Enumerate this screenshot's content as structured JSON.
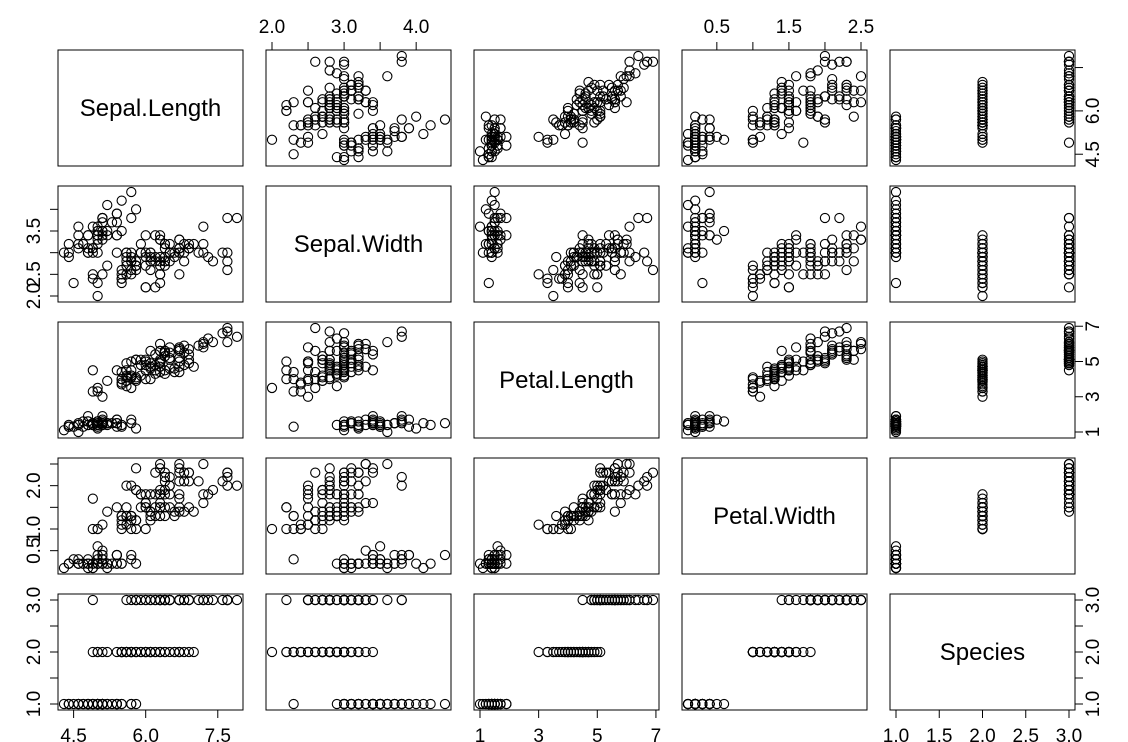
{
  "chart_data": {
    "type": "scatter-matrix",
    "variables": [
      "Sepal.Length",
      "Sepal.Width",
      "Petal.Length",
      "Petal.Width",
      "Species"
    ],
    "ranges": [
      [
        4.3,
        7.9
      ],
      [
        2.0,
        4.4
      ],
      [
        1.0,
        6.9
      ],
      [
        0.1,
        2.5
      ],
      [
        1,
        3
      ]
    ],
    "ticks": [
      [
        4.5,
        6.0,
        7.5
      ],
      [
        2.0,
        3.0,
        4.0,
        2.5,
        3.5
      ],
      [
        1,
        3,
        5,
        7
      ],
      [
        0.5,
        1.5,
        2.5,
        1.0,
        2.0
      ],
      [
        1.0,
        2.0,
        3.0,
        1.5,
        2.5
      ]
    ],
    "tick_labels": [
      [
        "4.5",
        "6.0",
        "7.5"
      ],
      [
        "2.0",
        "3.0",
        "4.0",
        "2.5",
        "3.5"
      ],
      [
        "1",
        "3",
        "5",
        "7"
      ],
      [
        "0.5",
        "1.5",
        "2.5",
        "1.0",
        "2.0"
      ],
      [
        "1.0",
        "2.0",
        "3.0",
        "1.5",
        "2.5"
      ]
    ],
    "axes_layout": {
      "top": [
        null,
        [
          0,
          1,
          2
        ],
        null,
        [
          0,
          1,
          2
        ],
        null
      ],
      "bottom": [
        [
          0,
          1,
          2
        ],
        null,
        [
          0,
          1,
          2,
          3
        ],
        null,
        [
          0,
          3,
          1,
          4,
          2
        ]
      ],
      "left": [
        null,
        [
          3,
          4,
          0
        ],
        null,
        [
          0,
          3,
          4
        ],
        [
          0,
          1,
          2
        ]
      ],
      "right": [
        [
          0,
          1
        ],
        null,
        [
          0,
          1,
          2,
          3
        ],
        null,
        [
          0,
          1,
          2
        ]
      ]
    },
    "columns": [
      "Sepal.Length",
      "Sepal.Width",
      "Petal.Length",
      "Petal.Width",
      "Species"
    ],
    "rows": [
      [
        5.1,
        3.5,
        1.4,
        0.2,
        1
      ],
      [
        4.9,
        3.0,
        1.4,
        0.2,
        1
      ],
      [
        4.7,
        3.2,
        1.3,
        0.2,
        1
      ],
      [
        4.6,
        3.1,
        1.5,
        0.2,
        1
      ],
      [
        5.0,
        3.6,
        1.4,
        0.2,
        1
      ],
      [
        5.4,
        3.9,
        1.7,
        0.4,
        1
      ],
      [
        4.6,
        3.4,
        1.4,
        0.3,
        1
      ],
      [
        5.0,
        3.4,
        1.5,
        0.2,
        1
      ],
      [
        4.4,
        2.9,
        1.4,
        0.2,
        1
      ],
      [
        4.9,
        3.1,
        1.5,
        0.1,
        1
      ],
      [
        5.4,
        3.7,
        1.5,
        0.2,
        1
      ],
      [
        4.8,
        3.4,
        1.6,
        0.2,
        1
      ],
      [
        4.8,
        3.0,
        1.4,
        0.1,
        1
      ],
      [
        4.3,
        3.0,
        1.1,
        0.1,
        1
      ],
      [
        5.8,
        4.0,
        1.2,
        0.2,
        1
      ],
      [
        5.7,
        4.4,
        1.5,
        0.4,
        1
      ],
      [
        5.4,
        3.9,
        1.3,
        0.4,
        1
      ],
      [
        5.1,
        3.5,
        1.4,
        0.3,
        1
      ],
      [
        5.7,
        3.8,
        1.7,
        0.3,
        1
      ],
      [
        5.1,
        3.8,
        1.5,
        0.3,
        1
      ],
      [
        5.4,
        3.4,
        1.7,
        0.2,
        1
      ],
      [
        5.1,
        3.7,
        1.5,
        0.4,
        1
      ],
      [
        4.6,
        3.6,
        1.0,
        0.2,
        1
      ],
      [
        5.1,
        3.3,
        1.7,
        0.5,
        1
      ],
      [
        4.8,
        3.4,
        1.9,
        0.2,
        1
      ],
      [
        5.0,
        3.0,
        1.6,
        0.2,
        1
      ],
      [
        5.0,
        3.4,
        1.6,
        0.4,
        1
      ],
      [
        5.2,
        3.5,
        1.5,
        0.2,
        1
      ],
      [
        5.2,
        3.4,
        1.4,
        0.2,
        1
      ],
      [
        4.7,
        3.2,
        1.6,
        0.2,
        1
      ],
      [
        4.8,
        3.1,
        1.6,
        0.2,
        1
      ],
      [
        5.4,
        3.4,
        1.5,
        0.4,
        1
      ],
      [
        5.2,
        4.1,
        1.5,
        0.1,
        1
      ],
      [
        5.5,
        4.2,
        1.4,
        0.2,
        1
      ],
      [
        4.9,
        3.1,
        1.5,
        0.2,
        1
      ],
      [
        5.0,
        3.2,
        1.2,
        0.2,
        1
      ],
      [
        5.5,
        3.5,
        1.3,
        0.2,
        1
      ],
      [
        4.9,
        3.6,
        1.4,
        0.1,
        1
      ],
      [
        4.4,
        3.0,
        1.3,
        0.2,
        1
      ],
      [
        5.1,
        3.4,
        1.5,
        0.2,
        1
      ],
      [
        5.0,
        3.5,
        1.3,
        0.3,
        1
      ],
      [
        4.5,
        2.3,
        1.3,
        0.3,
        1
      ],
      [
        4.4,
        3.2,
        1.3,
        0.2,
        1
      ],
      [
        5.0,
        3.5,
        1.6,
        0.6,
        1
      ],
      [
        5.1,
        3.8,
        1.9,
        0.4,
        1
      ],
      [
        4.8,
        3.0,
        1.4,
        0.3,
        1
      ],
      [
        5.1,
        3.8,
        1.6,
        0.2,
        1
      ],
      [
        4.6,
        3.2,
        1.4,
        0.2,
        1
      ],
      [
        5.3,
        3.7,
        1.5,
        0.2,
        1
      ],
      [
        5.0,
        3.3,
        1.4,
        0.2,
        1
      ],
      [
        7.0,
        3.2,
        4.7,
        1.4,
        2
      ],
      [
        6.4,
        3.2,
        4.5,
        1.5,
        2
      ],
      [
        6.9,
        3.1,
        4.9,
        1.5,
        2
      ],
      [
        5.5,
        2.3,
        4.0,
        1.3,
        2
      ],
      [
        6.5,
        2.8,
        4.6,
        1.5,
        2
      ],
      [
        5.7,
        2.8,
        4.5,
        1.3,
        2
      ],
      [
        6.3,
        3.3,
        4.7,
        1.6,
        2
      ],
      [
        4.9,
        2.4,
        3.3,
        1.0,
        2
      ],
      [
        6.6,
        2.9,
        4.6,
        1.3,
        2
      ],
      [
        5.2,
        2.7,
        3.9,
        1.4,
        2
      ],
      [
        5.0,
        2.0,
        3.5,
        1.0,
        2
      ],
      [
        5.9,
        3.0,
        4.2,
        1.5,
        2
      ],
      [
        6.0,
        2.2,
        4.0,
        1.0,
        2
      ],
      [
        6.1,
        2.9,
        4.7,
        1.4,
        2
      ],
      [
        5.6,
        2.9,
        3.6,
        1.3,
        2
      ],
      [
        6.7,
        3.1,
        4.4,
        1.4,
        2
      ],
      [
        5.6,
        3.0,
        4.5,
        1.5,
        2
      ],
      [
        5.8,
        2.7,
        4.1,
        1.0,
        2
      ],
      [
        6.2,
        2.2,
        4.5,
        1.5,
        2
      ],
      [
        5.6,
        2.5,
        3.9,
        1.1,
        2
      ],
      [
        5.9,
        3.2,
        4.8,
        1.8,
        2
      ],
      [
        6.1,
        2.8,
        4.0,
        1.3,
        2
      ],
      [
        6.3,
        2.5,
        4.9,
        1.5,
        2
      ],
      [
        6.1,
        2.8,
        4.7,
        1.2,
        2
      ],
      [
        6.4,
        2.9,
        4.3,
        1.3,
        2
      ],
      [
        6.6,
        3.0,
        4.4,
        1.4,
        2
      ],
      [
        6.8,
        2.8,
        4.8,
        1.4,
        2
      ],
      [
        6.7,
        3.0,
        5.0,
        1.7,
        2
      ],
      [
        6.0,
        2.9,
        4.5,
        1.5,
        2
      ],
      [
        5.7,
        2.6,
        3.5,
        1.0,
        2
      ],
      [
        5.5,
        2.4,
        3.8,
        1.1,
        2
      ],
      [
        5.5,
        2.4,
        3.7,
        1.0,
        2
      ],
      [
        5.8,
        2.7,
        3.9,
        1.2,
        2
      ],
      [
        6.0,
        2.7,
        5.1,
        1.6,
        2
      ],
      [
        5.4,
        3.0,
        4.5,
        1.5,
        2
      ],
      [
        6.0,
        3.4,
        4.5,
        1.6,
        2
      ],
      [
        6.7,
        3.1,
        4.7,
        1.5,
        2
      ],
      [
        6.3,
        2.3,
        4.4,
        1.3,
        2
      ],
      [
        5.6,
        3.0,
        4.1,
        1.3,
        2
      ],
      [
        5.5,
        2.5,
        4.0,
        1.3,
        2
      ],
      [
        5.5,
        2.6,
        4.4,
        1.2,
        2
      ],
      [
        6.1,
        3.0,
        4.6,
        1.4,
        2
      ],
      [
        5.8,
        2.6,
        4.0,
        1.2,
        2
      ],
      [
        5.0,
        2.3,
        3.3,
        1.0,
        2
      ],
      [
        5.6,
        2.7,
        4.2,
        1.3,
        2
      ],
      [
        5.7,
        3.0,
        4.2,
        1.2,
        2
      ],
      [
        5.7,
        2.9,
        4.2,
        1.3,
        2
      ],
      [
        6.2,
        2.9,
        4.3,
        1.3,
        2
      ],
      [
        5.1,
        2.5,
        3.0,
        1.1,
        2
      ],
      [
        5.7,
        2.8,
        4.1,
        1.3,
        2
      ],
      [
        6.3,
        3.3,
        6.0,
        2.5,
        3
      ],
      [
        5.8,
        2.7,
        5.1,
        1.9,
        3
      ],
      [
        7.1,
        3.0,
        5.9,
        2.1,
        3
      ],
      [
        6.3,
        2.9,
        5.6,
        1.8,
        3
      ],
      [
        6.5,
        3.0,
        5.8,
        2.2,
        3
      ],
      [
        7.6,
        3.0,
        6.6,
        2.1,
        3
      ],
      [
        4.9,
        2.5,
        4.5,
        1.7,
        3
      ],
      [
        7.3,
        2.9,
        6.3,
        1.8,
        3
      ],
      [
        6.7,
        2.5,
        5.8,
        1.8,
        3
      ],
      [
        7.2,
        3.6,
        6.1,
        2.5,
        3
      ],
      [
        6.5,
        3.2,
        5.1,
        2.0,
        3
      ],
      [
        6.4,
        2.7,
        5.3,
        1.9,
        3
      ],
      [
        6.8,
        3.0,
        5.5,
        2.1,
        3
      ],
      [
        5.7,
        2.5,
        5.0,
        2.0,
        3
      ],
      [
        5.8,
        2.8,
        5.1,
        2.4,
        3
      ],
      [
        6.4,
        3.2,
        5.3,
        2.3,
        3
      ],
      [
        6.5,
        3.0,
        5.5,
        1.8,
        3
      ],
      [
        7.7,
        3.8,
        6.7,
        2.2,
        3
      ],
      [
        7.7,
        2.6,
        6.9,
        2.3,
        3
      ],
      [
        6.0,
        2.2,
        5.0,
        1.5,
        3
      ],
      [
        6.9,
        3.2,
        5.7,
        2.3,
        3
      ],
      [
        5.6,
        2.8,
        4.9,
        2.0,
        3
      ],
      [
        7.7,
        2.8,
        6.7,
        2.0,
        3
      ],
      [
        6.3,
        2.7,
        4.9,
        1.8,
        3
      ],
      [
        6.7,
        3.3,
        5.7,
        2.1,
        3
      ],
      [
        7.2,
        3.2,
        6.0,
        1.8,
        3
      ],
      [
        6.2,
        2.8,
        4.8,
        1.8,
        3
      ],
      [
        6.1,
        3.0,
        4.9,
        1.8,
        3
      ],
      [
        6.4,
        2.8,
        5.6,
        2.1,
        3
      ],
      [
        7.2,
        3.0,
        5.8,
        1.6,
        3
      ],
      [
        7.4,
        2.8,
        6.1,
        1.9,
        3
      ],
      [
        7.9,
        3.8,
        6.4,
        2.0,
        3
      ],
      [
        6.4,
        2.8,
        5.6,
        2.2,
        3
      ],
      [
        6.3,
        2.8,
        5.1,
        1.5,
        3
      ],
      [
        6.1,
        2.6,
        5.6,
        1.4,
        3
      ],
      [
        7.7,
        3.0,
        6.1,
        2.3,
        3
      ],
      [
        6.3,
        3.4,
        5.6,
        2.4,
        3
      ],
      [
        6.4,
        3.1,
        5.5,
        1.8,
        3
      ],
      [
        6.0,
        3.0,
        4.8,
        1.8,
        3
      ],
      [
        6.9,
        3.1,
        5.4,
        2.1,
        3
      ],
      [
        6.7,
        3.1,
        5.6,
        2.4,
        3
      ],
      [
        6.9,
        3.1,
        5.1,
        2.3,
        3
      ],
      [
        5.8,
        2.7,
        5.1,
        1.9,
        3
      ],
      [
        6.8,
        3.2,
        5.9,
        2.3,
        3
      ],
      [
        6.7,
        3.3,
        5.7,
        2.5,
        3
      ],
      [
        6.7,
        3.0,
        5.2,
        2.3,
        3
      ],
      [
        6.3,
        2.5,
        5.0,
        1.9,
        3
      ],
      [
        6.5,
        3.0,
        5.2,
        2.0,
        3
      ],
      [
        6.2,
        3.4,
        5.4,
        2.3,
        3
      ],
      [
        5.9,
        3.0,
        5.1,
        1.8,
        3
      ]
    ]
  }
}
